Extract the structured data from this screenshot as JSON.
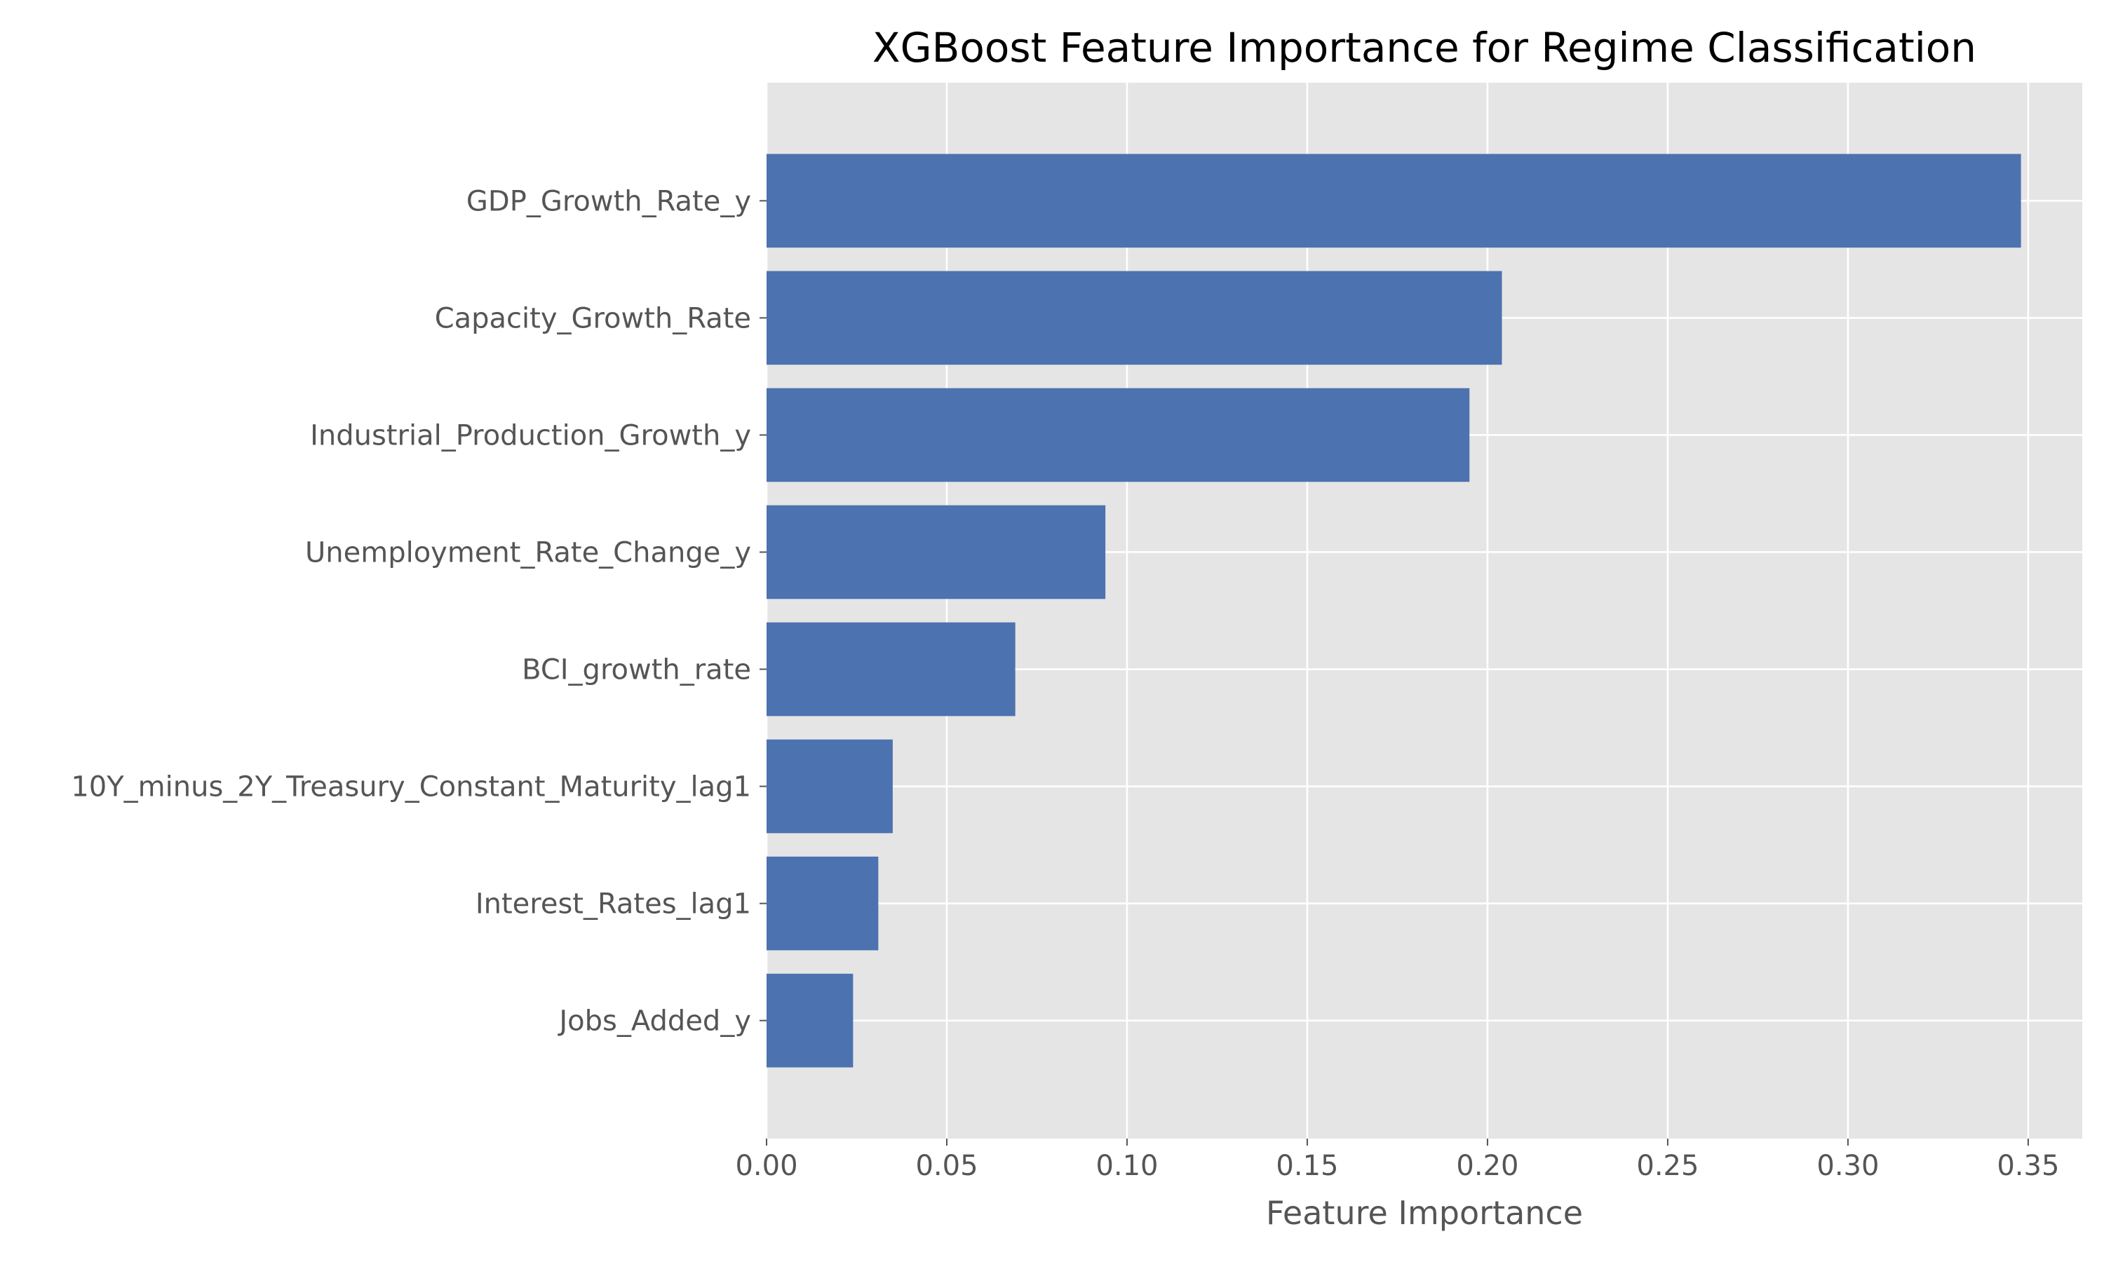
{
  "chart_data": {
    "type": "bar",
    "orientation": "horizontal",
    "title": "XGBoost Feature Importance for Regime Classification",
    "xlabel": "Feature Importance",
    "ylabel": "",
    "categories": [
      "GDP_Growth_Rate_y",
      "Capacity_Growth_Rate",
      "Industrial_Production_Growth_y",
      "Unemployment_Rate_Change_y",
      "BCI_growth_rate",
      "10Y_minus_2Y_Treasury_Constant_Maturity_lag1",
      "Interest_Rates_lag1",
      "Jobs_Added_y"
    ],
    "values": [
      0.348,
      0.204,
      0.195,
      0.094,
      0.069,
      0.035,
      0.031,
      0.024
    ],
    "xlim": [
      0,
      0.365
    ],
    "xticks": [
      0.0,
      0.05,
      0.1,
      0.15,
      0.2,
      0.25,
      0.3,
      0.35
    ],
    "xtick_labels": [
      "0.00",
      "0.05",
      "0.10",
      "0.15",
      "0.20",
      "0.25",
      "0.30",
      "0.35"
    ],
    "grid": true,
    "bar_color": "#4c72b0",
    "background_color": "#e5e5e5",
    "legend": "none"
  }
}
